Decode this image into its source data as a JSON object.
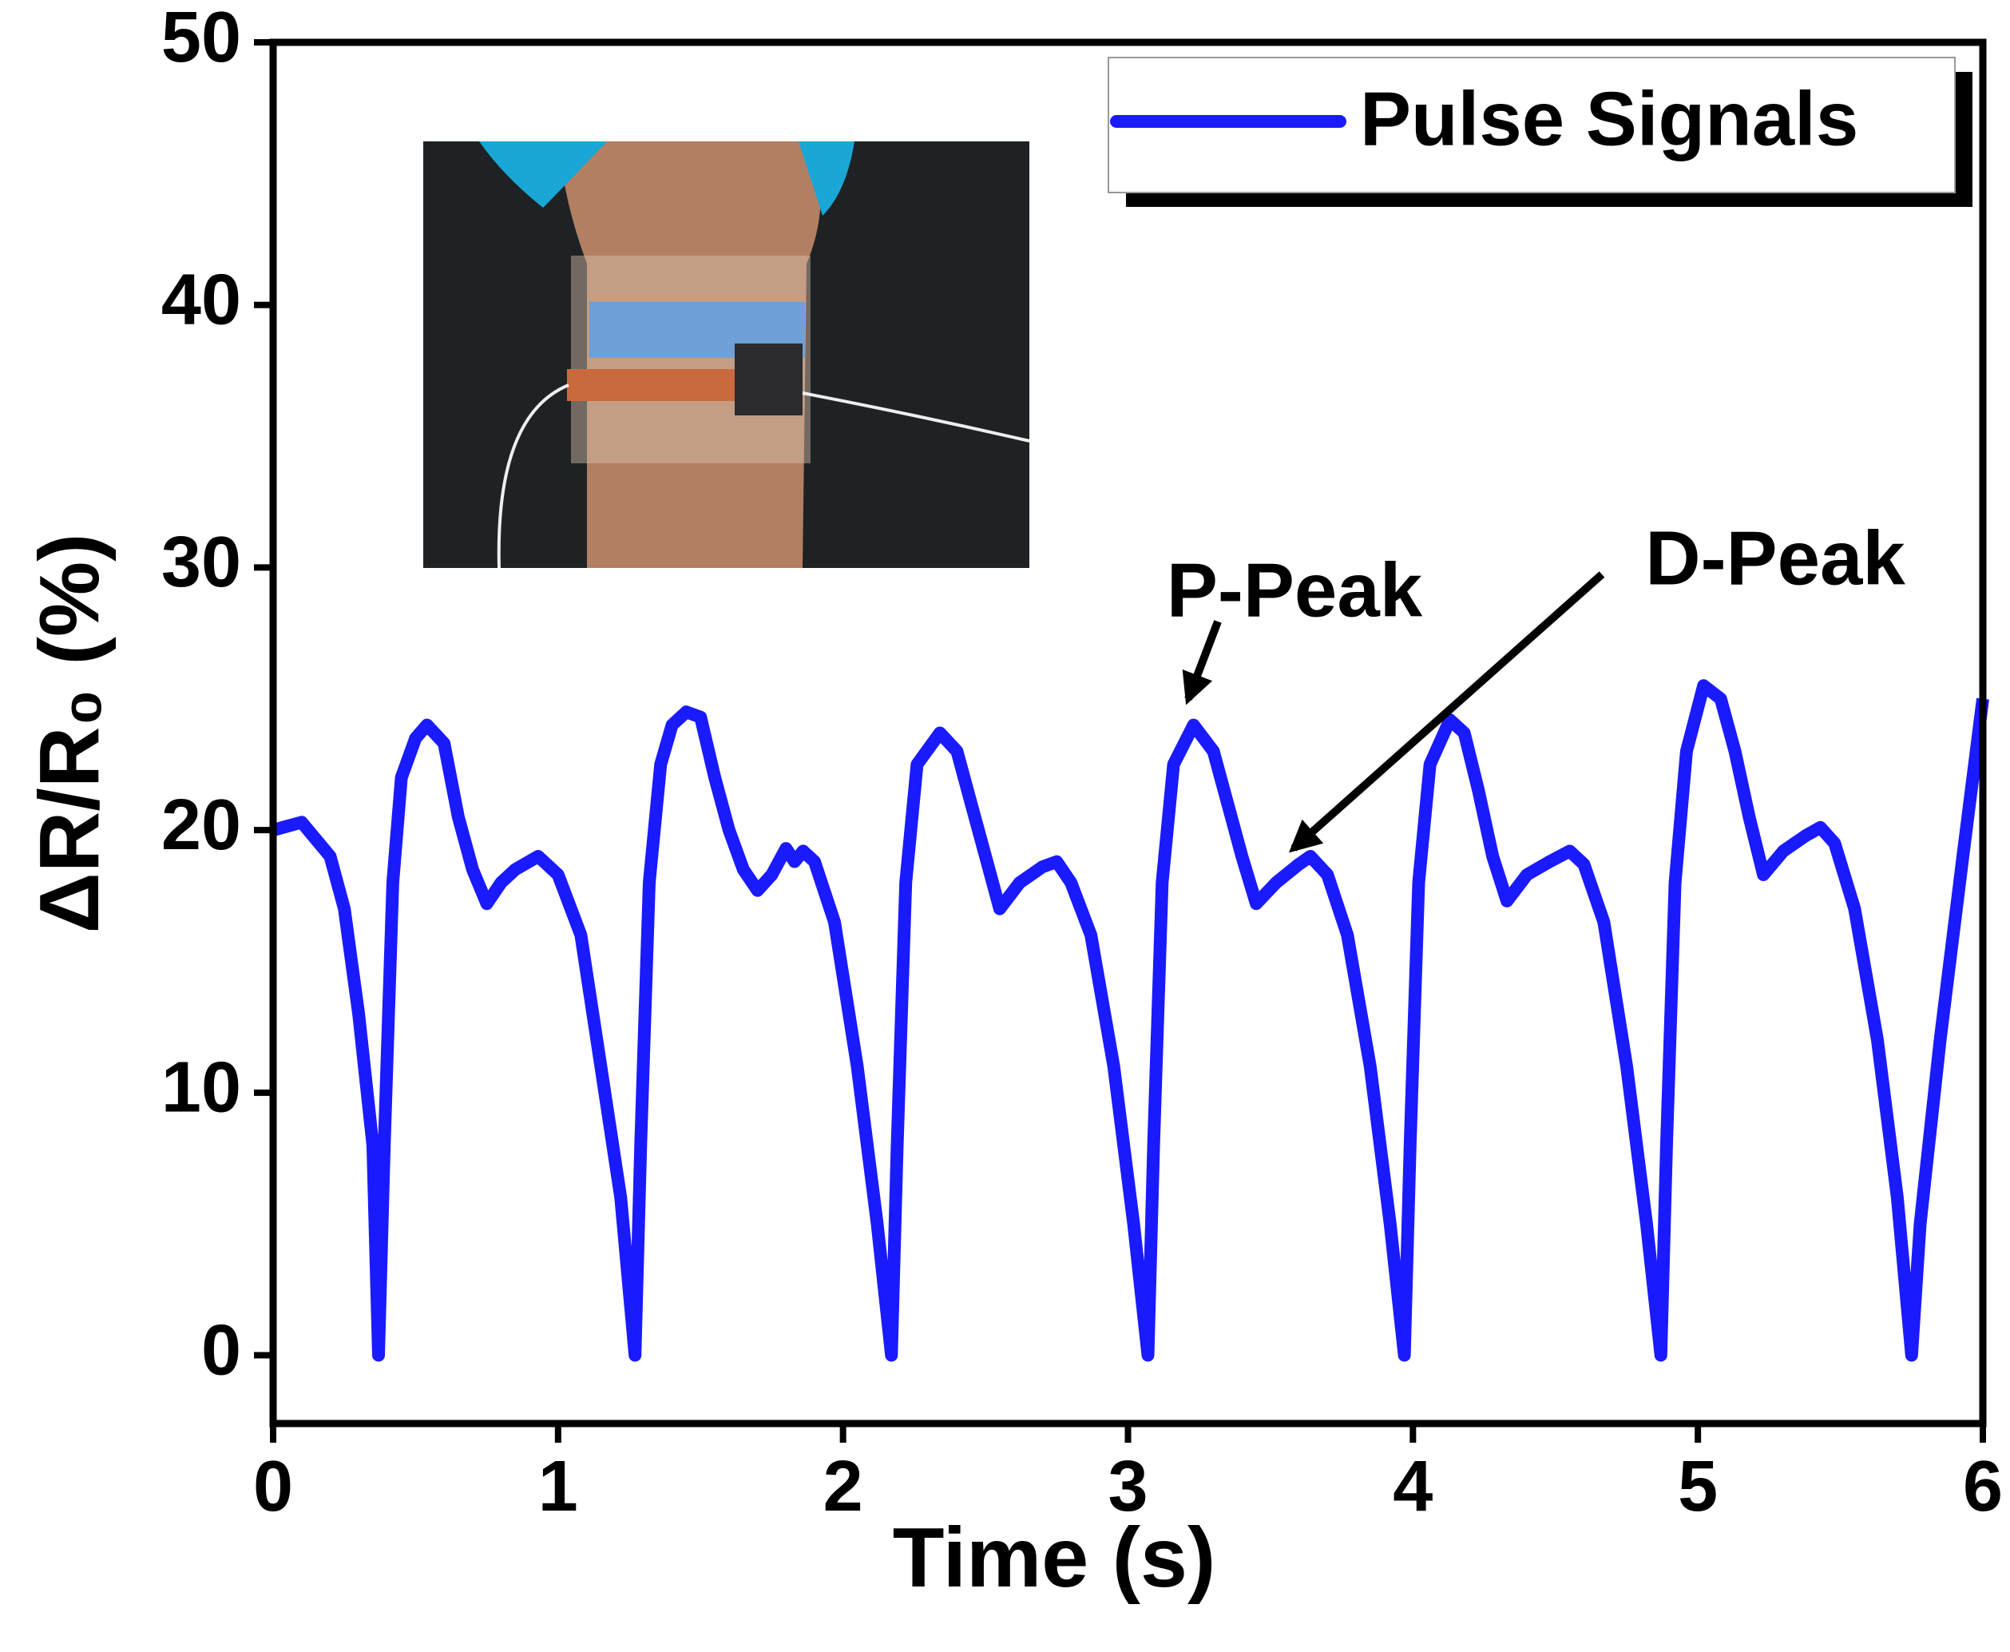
{
  "chart_data": {
    "type": "line",
    "xlabel": "Time (s)",
    "ylabel": "ΔR/R₀ (%)",
    "xlim": [
      0,
      6
    ],
    "ylim": [
      -2.6,
      50
    ],
    "xticks": [
      0,
      1,
      2,
      3,
      4,
      5,
      6
    ],
    "yticks": [
      0,
      10,
      20,
      30,
      40,
      50
    ],
    "legend": "upper right",
    "x": [
      0,
      0.1,
      0.2,
      0.25,
      0.3,
      0.35,
      0.37,
      0.39,
      0.42,
      0.45,
      0.5,
      0.54,
      0.6,
      0.65,
      0.7,
      0.75,
      0.8,
      0.85,
      0.93,
      1.0,
      1.08,
      1.15,
      1.22,
      1.27,
      1.29,
      1.32,
      1.36,
      1.4,
      1.45,
      1.5,
      1.55,
      1.6,
      1.65,
      1.7,
      1.75,
      1.8,
      1.83,
      1.86,
      1.9,
      1.97,
      2.05,
      2.12,
      2.17,
      2.19,
      2.22,
      2.26,
      2.34,
      2.4,
      2.45,
      2.5,
      2.55,
      2.62,
      2.7,
      2.75,
      2.8,
      2.87,
      2.95,
      3.02,
      3.07,
      3.09,
      3.12,
      3.16,
      3.23,
      3.3,
      3.35,
      3.4,
      3.45,
      3.52,
      3.6,
      3.64,
      3.7,
      3.77,
      3.85,
      3.92,
      3.97,
      3.99,
      4.02,
      4.06,
      4.13,
      4.18,
      4.23,
      4.28,
      4.33,
      4.4,
      4.48,
      4.55,
      4.6,
      4.67,
      4.75,
      4.82,
      4.87,
      4.89,
      4.92,
      4.96,
      5.02,
      5.08,
      5.13,
      5.18,
      5.23,
      5.3,
      5.38,
      5.43,
      5.48,
      5.55,
      5.63,
      5.7,
      5.75,
      5.78,
      5.85,
      5.93,
      6.0
    ],
    "series": [
      {
        "name": "Pulse Signals",
        "color": "#1a1aff",
        "values": [
          20,
          20.3,
          19,
          17,
          13,
          8,
          0,
          8,
          18,
          22,
          23.5,
          24,
          23.3,
          20.5,
          18.5,
          17.2,
          18,
          18.5,
          19,
          18.3,
          16,
          11,
          6,
          0,
          8,
          18,
          22.5,
          24,
          24.5,
          24.3,
          22,
          20,
          18.5,
          17.7,
          18.3,
          19.3,
          18.8,
          19.2,
          18.8,
          16.5,
          11,
          5,
          0,
          8,
          18,
          22.5,
          23.7,
          23,
          21,
          19,
          17,
          18,
          18.6,
          18.8,
          18,
          16,
          11,
          5,
          0,
          8,
          18,
          22.5,
          24,
          23,
          21,
          19,
          17.2,
          18,
          18.7,
          19,
          18.3,
          16,
          11,
          5,
          0,
          8,
          18,
          22.5,
          24.2,
          23.7,
          21.5,
          19,
          17.3,
          18.3,
          18.8,
          19.2,
          18.7,
          16.5,
          11,
          5,
          0,
          8,
          18,
          23,
          25.5,
          25,
          23,
          20.5,
          18.3,
          19.2,
          19.8,
          20.1,
          19.5,
          17,
          12,
          6,
          0,
          5,
          12,
          19,
          25
        ]
      }
    ],
    "annotations": [
      "P-Peak",
      "D-Peak"
    ]
  }
}
